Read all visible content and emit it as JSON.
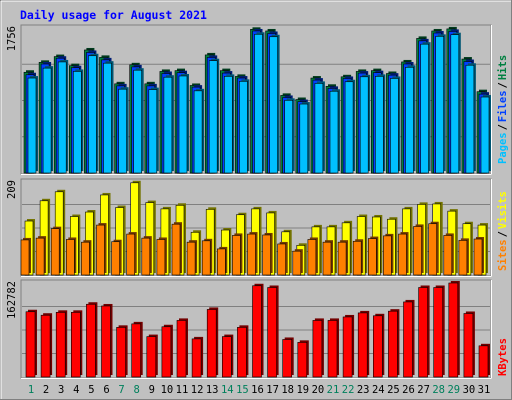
{
  "title": "Daily usage for August 2021",
  "colors": {
    "background": "#C0C0C0",
    "title": "#0000FF",
    "hits": "#008040",
    "files": "#0040FF",
    "pages": "#00C0FF",
    "visits": "#FFFF00",
    "sites": "#FF8000",
    "kbytes": "#FF0000",
    "weekend_day": "#00805C",
    "weekday": "#000000"
  },
  "labels": {
    "hits": "Hits",
    "files": "Files",
    "pages": "Pages",
    "visits": "Visits",
    "sites": "Sites",
    "kbytes": "KBytes",
    "slash": "/"
  },
  "chart_data": [
    {
      "type": "bar",
      "title": "Daily usage for August 2021",
      "categories": [
        "1",
        "2",
        "3",
        "4",
        "5",
        "6",
        "7",
        "8",
        "9",
        "10",
        "11",
        "12",
        "13",
        "14",
        "15",
        "16",
        "17",
        "18",
        "19",
        "20",
        "21",
        "22",
        "23",
        "24",
        "25",
        "26",
        "27",
        "28",
        "29",
        "30",
        "31"
      ],
      "weekend_days": [
        1,
        7,
        8,
        14,
        15,
        21,
        22,
        28,
        29
      ],
      "ymax_label": "1756",
      "ylim": [
        0,
        1756
      ],
      "series": [
        {
          "name": "Hits",
          "values": [
            1220,
            1340,
            1410,
            1300,
            1490,
            1400,
            1080,
            1310,
            1080,
            1230,
            1240,
            1060,
            1430,
            1240,
            1170,
            1740,
            1720,
            940,
            890,
            1150,
            1050,
            1165,
            1230,
            1240,
            1205,
            1345,
            1630,
            1720,
            1745,
            1380,
            985
          ]
        },
        {
          "name": "Files",
          "values": [
            1190,
            1320,
            1390,
            1275,
            1460,
            1370,
            1055,
            1285,
            1055,
            1205,
            1215,
            1040,
            1400,
            1210,
            1150,
            1720,
            1690,
            915,
            865,
            1125,
            1025,
            1145,
            1210,
            1215,
            1185,
            1320,
            1600,
            1695,
            1715,
            1350,
            955
          ]
        },
        {
          "name": "Pages",
          "values": [
            1150,
            1270,
            1345,
            1230,
            1420,
            1330,
            1015,
            1245,
            1010,
            1160,
            1175,
            995,
            1360,
            1170,
            1110,
            1680,
            1650,
            880,
            835,
            1085,
            990,
            1105,
            1165,
            1170,
            1145,
            1280,
            1560,
            1655,
            1675,
            1305,
            920
          ]
        }
      ]
    },
    {
      "type": "bar",
      "categories": [
        "1",
        "2",
        "3",
        "4",
        "5",
        "6",
        "7",
        "8",
        "9",
        "10",
        "11",
        "12",
        "13",
        "14",
        "15",
        "16",
        "17",
        "18",
        "19",
        "20",
        "21",
        "22",
        "23",
        "24",
        "25",
        "26",
        "27",
        "28",
        "29",
        "30",
        "31"
      ],
      "ymax_label": "209",
      "ylim": [
        0,
        209
      ],
      "series": [
        {
          "name": "Visits",
          "values": [
            120,
            165,
            185,
            130,
            140,
            178,
            150,
            205,
            161,
            147,
            155,
            95,
            146,
            100,
            134,
            147,
            138,
            96,
            66,
            107,
            107,
            116,
            130,
            129,
            124,
            147,
            157,
            158,
            142,
            114,
            111
          ]
        },
        {
          "name": "Sites",
          "values": [
            78,
            82,
            103,
            79,
            73,
            111,
            74,
            91,
            82,
            79,
            113,
            73,
            76,
            58,
            88,
            91,
            89,
            69,
            53,
            79,
            73,
            73,
            75,
            81,
            87,
            91,
            108,
            114,
            88,
            77,
            80
          ]
        }
      ]
    },
    {
      "type": "bar",
      "categories": [
        "1",
        "2",
        "3",
        "4",
        "5",
        "6",
        "7",
        "8",
        "9",
        "10",
        "11",
        "12",
        "13",
        "14",
        "15",
        "16",
        "17",
        "18",
        "19",
        "20",
        "21",
        "22",
        "23",
        "24",
        "25",
        "26",
        "27",
        "28",
        "29",
        "30",
        "31"
      ],
      "ymax_label": "162782",
      "ylim": [
        0,
        162782
      ],
      "series": [
        {
          "name": "KBytes",
          "values": [
            113000,
            107000,
            112000,
            112000,
            126000,
            123000,
            86000,
            92000,
            70000,
            87000,
            98000,
            66000,
            117000,
            70000,
            86000,
            158000,
            155000,
            65000,
            60000,
            98000,
            98000,
            104000,
            111000,
            106000,
            114000,
            130000,
            155000,
            155000,
            165000,
            110000,
            54000
          ]
        }
      ]
    }
  ]
}
